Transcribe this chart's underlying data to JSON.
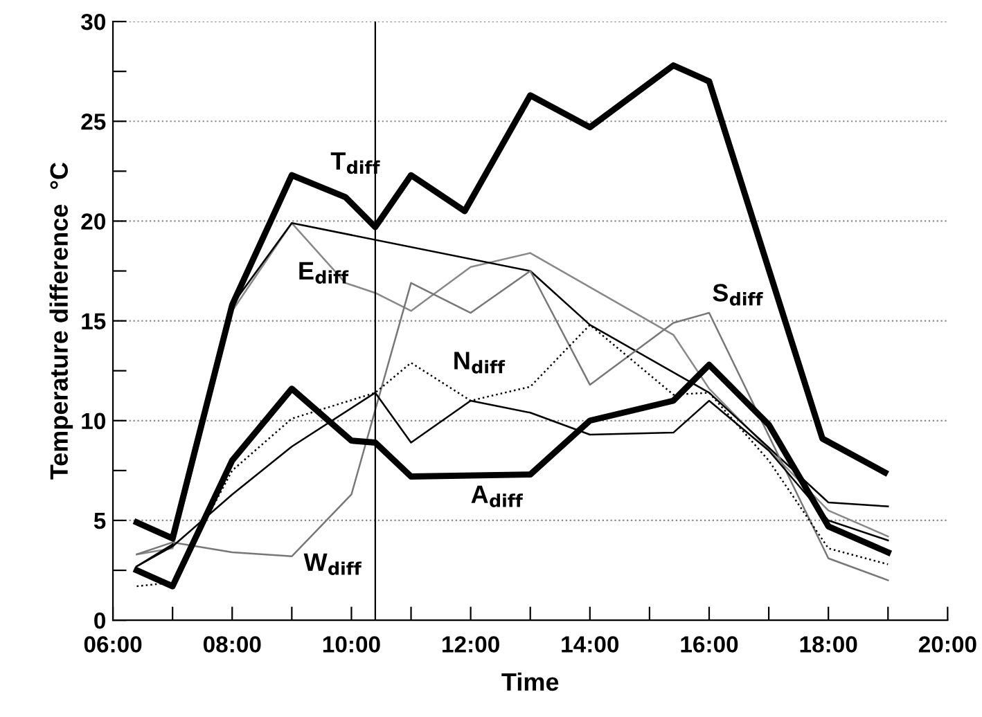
{
  "chart_data": {
    "type": "line",
    "xlabel": "Time",
    "ylabel": "Temperature difference  °C",
    "xlim": [
      6,
      20
    ],
    "ylim": [
      0,
      30
    ],
    "xticks": [
      {
        "value": 6,
        "label": "06:00"
      },
      {
        "value": 7,
        "label": null
      },
      {
        "value": 8,
        "label": "08:00"
      },
      {
        "value": 9,
        "label": null
      },
      {
        "value": 10,
        "label": "10:00"
      },
      {
        "value": 11,
        "label": null
      },
      {
        "value": 12,
        "label": "12:00"
      },
      {
        "value": 13,
        "label": null
      },
      {
        "value": 14,
        "label": "14:00"
      },
      {
        "value": 15,
        "label": null
      },
      {
        "value": 16,
        "label": "16:00"
      },
      {
        "value": 17,
        "label": null
      },
      {
        "value": 18,
        "label": "18:00"
      },
      {
        "value": 19,
        "label": null
      },
      {
        "value": 20,
        "label": "20:00"
      }
    ],
    "yticks": [
      0,
      {
        "value": 2.5,
        "label": null
      },
      5,
      {
        "value": 7.5,
        "label": null
      },
      10,
      {
        "value": 12.5,
        "label": null
      },
      15,
      {
        "value": 17.5,
        "label": null
      },
      20,
      {
        "value": 22.5,
        "label": null
      },
      25,
      {
        "value": 27.5,
        "label": null
      },
      30
    ],
    "grid": "y",
    "marker": "none",
    "ref_lines": [
      {
        "axis": "x",
        "value": 10.4,
        "color": "#000000"
      }
    ],
    "series": [
      {
        "color": "#888888",
        "line_style": "solid",
        "x": [
          6.4,
          7,
          8,
          9,
          9.9,
          10.4,
          11,
          12,
          13,
          15.4,
          16,
          18,
          19
        ],
        "values": [
          3.3,
          3.6,
          15.5,
          19.9,
          16.9,
          16.4,
          15.5,
          17.7,
          18.4,
          14.3,
          11.6,
          5.5,
          4.2
        ]
      },
      {
        "color": "#000000",
        "line_style": "solid",
        "x": [
          6.4,
          7,
          8,
          9,
          13,
          14,
          16,
          18,
          19
        ],
        "values": [
          2.7,
          3.8,
          15.8,
          19.9,
          17.5,
          14.8,
          11.4,
          5.9,
          5.7
        ]
      },
      {
        "color": "#777777",
        "line_style": "solid",
        "x": [
          6.4,
          7,
          8,
          9,
          10,
          11,
          12,
          13,
          14,
          15.4,
          16,
          18,
          19
        ],
        "values": [
          3.3,
          3.9,
          3.4,
          3.2,
          6.3,
          16.9,
          15.4,
          17.5,
          11.8,
          14.9,
          15.4,
          3.1,
          2.0
        ]
      },
      {
        "color": "#000000",
        "line_style": "dotted",
        "x": [
          6.4,
          7,
          8,
          9,
          10.4,
          11,
          12,
          13,
          14,
          15.4,
          16,
          17,
          18,
          19
        ],
        "values": [
          1.7,
          1.9,
          7.5,
          10.1,
          11.4,
          12.9,
          11.0,
          11.7,
          14.8,
          11.3,
          11.4,
          8.0,
          3.6,
          2.8
        ]
      },
      {
        "color": "#000000",
        "line_style": "solid",
        "x": [
          6.4,
          7,
          8,
          9,
          10.4,
          11,
          12,
          13,
          14,
          15.4,
          16,
          17,
          18,
          19
        ],
        "values": [
          2.7,
          3.7,
          6.3,
          8.7,
          11.4,
          8.9,
          11.0,
          10.4,
          9.3,
          9.4,
          11.0,
          8.5,
          5.0,
          4.0
        ]
      },
      {
        "color": "#000000",
        "line_style": "solid",
        "x": [
          6.4,
          7,
          8,
          9,
          9.9,
          10.4,
          11,
          11.9,
          13,
          14,
          15.4,
          16,
          17.9,
          18.95
        ],
        "values": [
          4.9,
          4.1,
          15.8,
          22.3,
          21.2,
          19.7,
          22.3,
          20.5,
          26.3,
          24.7,
          27.8,
          27.0,
          9.1,
          7.4
        ]
      },
      {
        "color": "#000000",
        "line_style": "solid",
        "x": [
          6.4,
          7,
          8,
          9,
          10,
          10.4,
          11,
          13,
          14,
          15.4,
          16,
          17,
          18,
          19
        ],
        "values": [
          2.5,
          1.7,
          8.0,
          11.6,
          9.0,
          8.9,
          7.2,
          7.3,
          10.0,
          11.0,
          12.8,
          9.8,
          4.7,
          3.4
        ]
      }
    ],
    "annotations": [
      "T$_{diff}$",
      "E$_{diff}$",
      "N$_{diff}$",
      "S$_{diff}$",
      "A$_{diff}$",
      "W$_{diff}$"
    ]
  }
}
